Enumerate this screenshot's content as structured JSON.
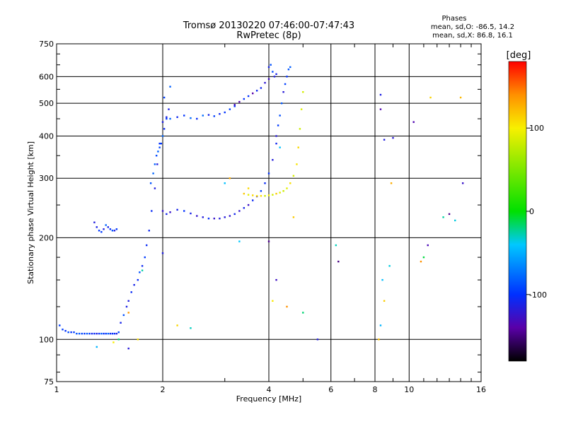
{
  "chart_data": {
    "type": "scatter",
    "title": "Tromsø 20130220 07:46:00-07:47:43",
    "subtitle": "RwPretec (8p)",
    "xlabel": "Frequency [MHz]",
    "ylabel": "Stationary phase Virtual Height [km]",
    "x_scale": "log",
    "y_scale": "log",
    "xlim": [
      1,
      16
    ],
    "ylim": [
      75,
      750
    ],
    "x_ticks": [
      1,
      2,
      4,
      6,
      8,
      10,
      16
    ],
    "y_ticks": [
      75,
      100,
      200,
      300,
      400,
      500,
      600,
      750
    ],
    "grid": true,
    "phases_box": {
      "title": "Phases",
      "line_o": "mean, sd,O: -86.5, 14.2",
      "line_x": "mean, sd,X: 86.8, 16.1"
    },
    "colorbar": {
      "label": "[deg]",
      "range": [
        -180,
        180
      ],
      "ticks": [
        100,
        0,
        -100
      ],
      "colormap": "rainbow: black at -180, purple, blue, cyan, green, yellow, orange, red at +180"
    },
    "color_scale": {
      "stops": [
        {
          "v": -180,
          "c": "#000000"
        },
        {
          "v": -140,
          "c": "#5a00a8"
        },
        {
          "v": -100,
          "c": "#0030ff"
        },
        {
          "v": -40,
          "c": "#00c8ff"
        },
        {
          "v": 0,
          "c": "#00e000"
        },
        {
          "v": 100,
          "c": "#f8f000"
        },
        {
          "v": 140,
          "c": "#ff9000"
        },
        {
          "v": 180,
          "c": "#ff0000"
        }
      ]
    },
    "series": [
      {
        "phase": -95,
        "x": [
          1.02,
          1.04,
          1.06,
          1.08,
          1.1,
          1.12,
          1.14,
          1.16,
          1.18,
          1.2,
          1.22,
          1.24,
          1.26,
          1.28,
          1.3,
          1.32,
          1.34,
          1.36,
          1.38,
          1.4,
          1.42,
          1.44,
          1.46,
          1.48,
          1.5
        ],
        "y": [
          110,
          107,
          106,
          105,
          105,
          105,
          104,
          104,
          104,
          104,
          104,
          104,
          104,
          104,
          104,
          104,
          104,
          104,
          104,
          104,
          104,
          104,
          104,
          104,
          105
        ]
      },
      {
        "phase": -100,
        "x": [
          1.52,
          1.55,
          1.58,
          1.6,
          1.63,
          1.66,
          1.7,
          1.72,
          1.75,
          1.78,
          1.8,
          1.83,
          1.86,
          1.9,
          1.93,
          1.96,
          2.0,
          2.02
        ],
        "y": [
          112,
          118,
          125,
          130,
          138,
          145,
          150,
          158,
          165,
          175,
          190,
          210,
          240,
          280,
          330,
          380,
          440,
          520
        ]
      },
      {
        "phase": -95,
        "x": [
          1.85,
          1.88,
          1.9,
          1.92,
          1.94,
          1.96,
          1.98,
          2.0,
          2.02,
          2.05,
          2.08,
          2.1
        ],
        "y": [
          290,
          310,
          330,
          350,
          360,
          370,
          380,
          400,
          420,
          450,
          480,
          560
        ]
      },
      {
        "phase": -100,
        "x": [
          1.28,
          1.3,
          1.32,
          1.34,
          1.36,
          1.38,
          1.4,
          1.42,
          1.44,
          1.46,
          1.48
        ],
        "y": [
          222,
          215,
          210,
          208,
          212,
          218,
          215,
          212,
          210,
          210,
          212
        ]
      },
      {
        "phase": -92,
        "x": [
          2.05,
          2.1,
          2.2,
          2.3,
          2.4,
          2.5,
          2.6,
          2.7,
          2.8,
          2.9,
          3.0,
          3.1,
          3.2
        ],
        "y": [
          455,
          450,
          455,
          460,
          452,
          450,
          460,
          462,
          458,
          465,
          470,
          480,
          490
        ]
      },
      {
        "phase": -120,
        "x": [
          3.2,
          3.3,
          3.4,
          3.5,
          3.6,
          3.7,
          3.8,
          3.9,
          4.0
        ],
        "y": [
          495,
          505,
          515,
          525,
          535,
          545,
          555,
          575,
          590
        ]
      },
      {
        "phase": -100,
        "x": [
          4.0,
          4.05,
          4.1,
          4.15,
          4.2
        ],
        "y": [
          640,
          650,
          620,
          600,
          610
        ]
      },
      {
        "phase": -110,
        "x": [
          2.0,
          2.05,
          2.1,
          2.2,
          2.3,
          2.4,
          2.5,
          2.6,
          2.7,
          2.8,
          2.9,
          3.0,
          3.1,
          3.2,
          3.3,
          3.4,
          3.5,
          3.6,
          3.7,
          3.8,
          3.9,
          4.0,
          4.1,
          4.2
        ],
        "y": [
          240,
          235,
          238,
          242,
          240,
          236,
          232,
          230,
          228,
          228,
          228,
          230,
          232,
          235,
          240,
          245,
          250,
          258,
          265,
          275,
          290,
          310,
          340,
          380
        ]
      },
      {
        "phase": -100,
        "x": [
          4.2,
          4.25,
          4.3,
          4.35,
          4.4,
          4.45,
          4.5,
          4.55,
          4.6
        ],
        "y": [
          400,
          430,
          460,
          500,
          540,
          570,
          600,
          630,
          640
        ]
      },
      {
        "phase": 100,
        "x": [
          3.4,
          3.5,
          3.6,
          3.7,
          3.8,
          3.9,
          4.0,
          4.1,
          4.2,
          4.3,
          4.4,
          4.5,
          4.6,
          4.7,
          4.8,
          4.85,
          4.9,
          4.95,
          5.0
        ],
        "y": [
          270,
          268,
          267,
          266,
          266,
          266,
          267,
          268,
          270,
          272,
          275,
          280,
          290,
          305,
          330,
          370,
          420,
          480,
          540
        ]
      },
      {
        "phase": -30,
        "x": [
          1.3,
          1.5,
          1.75,
          2.4,
          3.0,
          3.3,
          4.3,
          5.0,
          6.2,
          8.3,
          8.4,
          8.8,
          11.0,
          12.5,
          13.5
        ],
        "y": [
          95,
          100,
          160,
          108,
          290,
          195,
          370,
          120,
          190,
          110,
          150,
          165,
          175,
          230,
          225
        ]
      },
      {
        "phase": 120,
        "x": [
          1.45,
          1.6,
          1.7,
          2.2,
          3.1,
          3.5,
          4.1,
          4.5,
          4.7,
          8.2,
          8.5,
          8.9,
          10.8,
          11.5,
          14.0
        ],
        "y": [
          98,
          120,
          100,
          110,
          300,
          280,
          130,
          125,
          230,
          100,
          130,
          290,
          170,
          520,
          520
        ]
      },
      {
        "phase": -130,
        "x": [
          1.6,
          2.0,
          4.0,
          4.2,
          5.5,
          6.3,
          8.3,
          8.3,
          8.5,
          9.0,
          10.3,
          11.3,
          13.0,
          14.2
        ],
        "y": [
          94,
          180,
          195,
          150,
          100,
          170,
          480,
          530,
          390,
          395,
          440,
          190,
          235,
          290
        ]
      }
    ]
  }
}
